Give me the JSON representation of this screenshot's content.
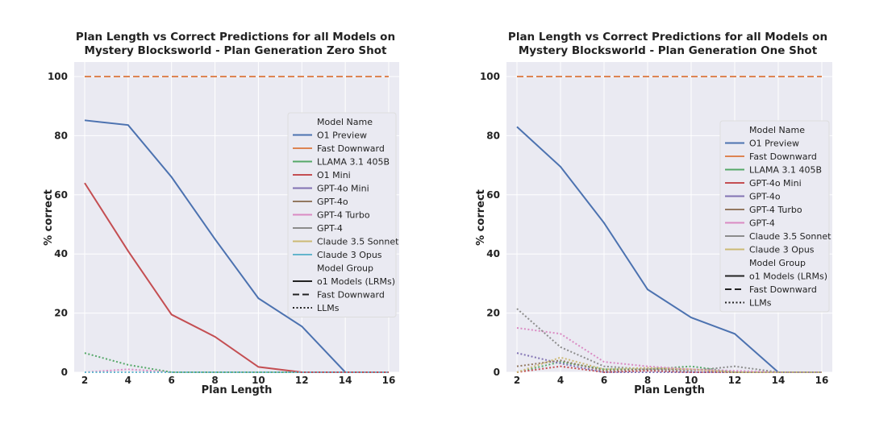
{
  "chart_data": [
    {
      "type": "line",
      "title": [
        "Plan Length vs Correct Predictions for all Models on",
        "Mystery Blocksworld - Plan Generation Zero Shot"
      ],
      "xlabel": "Plan Length",
      "ylabel": "% correct",
      "x": [
        2,
        4,
        6,
        8,
        10,
        12,
        14,
        16
      ],
      "xticks": [
        2,
        4,
        6,
        8,
        10,
        12,
        14,
        16
      ],
      "yticks": [
        0,
        20,
        40,
        60,
        80,
        100
      ],
      "ylim": [
        0,
        100
      ],
      "grid": true,
      "legend_placement": "right",
      "legend_title": "Model Name",
      "group_title": "Model Group",
      "groups": [
        {
          "name": "o1 Models (LRMs)",
          "style": "solid"
        },
        {
          "name": "Fast Downward",
          "style": "dashed"
        },
        {
          "name": "LLMs",
          "style": "dotted"
        }
      ],
      "series": [
        {
          "name": "O1 Preview",
          "color": "#4c72b0",
          "style": "solid",
          "values": [
            85.2,
            83.6,
            66,
            45,
            25,
            15.5,
            0,
            0
          ]
        },
        {
          "name": "Fast Downward",
          "color": "#dd8452",
          "style": "dashed",
          "values": [
            100,
            100,
            100,
            100,
            100,
            100,
            100,
            100
          ]
        },
        {
          "name": "LLAMA 3.1 405B",
          "color": "#55a868",
          "style": "dotted",
          "values": [
            6.5,
            2.5,
            0,
            0,
            0,
            0,
            0,
            0
          ]
        },
        {
          "name": "O1 Mini",
          "color": "#c44e52",
          "style": "solid",
          "values": [
            64,
            41,
            19.5,
            12,
            1.8,
            0,
            0,
            0
          ]
        },
        {
          "name": "GPT-4o Mini",
          "color": "#8172b3",
          "style": "dotted",
          "values": [
            0,
            0,
            0,
            0,
            0,
            0,
            0,
            0
          ]
        },
        {
          "name": "GPT-4o",
          "color": "#937860",
          "style": "dotted",
          "values": [
            0,
            0,
            0,
            0,
            0,
            0,
            0,
            0
          ]
        },
        {
          "name": "GPT-4 Turbo",
          "color": "#da8bc3",
          "style": "dotted",
          "values": [
            0,
            1,
            0,
            0,
            0,
            0,
            0,
            0
          ]
        },
        {
          "name": "GPT-4",
          "color": "#8c8c8c",
          "style": "dotted",
          "values": [
            0,
            0,
            0,
            0,
            0,
            0,
            0,
            0
          ]
        },
        {
          "name": "Claude 3.5 Sonnet",
          "color": "#ccb974",
          "style": "dotted",
          "values": [
            0,
            0,
            0,
            0,
            0,
            0,
            0,
            0
          ]
        },
        {
          "name": "Claude 3 Opus",
          "color": "#64b5cd",
          "style": "dotted",
          "values": [
            0,
            0,
            0,
            0,
            0,
            0,
            0,
            0
          ]
        }
      ]
    },
    {
      "type": "line",
      "title": [
        "Plan Length vs Correct Predictions for all Models on",
        "Mystery Blocksworld - Plan Generation One Shot"
      ],
      "xlabel": "Plan Length",
      "ylabel": "% correct",
      "x": [
        2,
        4,
        6,
        8,
        10,
        12,
        14,
        16
      ],
      "xticks": [
        2,
        4,
        6,
        8,
        10,
        12,
        14,
        16
      ],
      "yticks": [
        0,
        20,
        40,
        60,
        80,
        100
      ],
      "ylim": [
        0,
        100
      ],
      "grid": true,
      "legend_placement": "right",
      "legend_title": "Model Name",
      "group_title": "Model Group",
      "groups": [
        {
          "name": "o1 Models (LRMs)",
          "style": "solid"
        },
        {
          "name": "Fast Downward",
          "style": "dashed"
        },
        {
          "name": "LLMs",
          "style": "dotted"
        }
      ],
      "series": [
        {
          "name": "O1 Preview",
          "color": "#4c72b0",
          "style": "solid",
          "values": [
            83,
            69.5,
            50.5,
            28,
            18.5,
            13,
            0,
            0
          ]
        },
        {
          "name": "Fast Downward",
          "color": "#dd8452",
          "style": "dashed",
          "values": [
            100,
            100,
            100,
            100,
            100,
            100,
            100,
            100
          ]
        },
        {
          "name": "LLAMA 3.1 405B",
          "color": "#55a868",
          "style": "dotted",
          "values": [
            0,
            3.5,
            1,
            1,
            2,
            0,
            0,
            0
          ]
        },
        {
          "name": "GPT-4o Mini",
          "color": "#c44e52",
          "style": "dotted",
          "values": [
            0,
            2,
            0,
            0.5,
            0,
            0,
            0,
            0
          ]
        },
        {
          "name": "GPT-4o",
          "color": "#8172b3",
          "style": "dotted",
          "values": [
            6.5,
            3,
            0,
            0,
            0,
            0,
            0,
            0
          ]
        },
        {
          "name": "GPT-4 Turbo",
          "color": "#937860",
          "style": "dotted",
          "values": [
            2,
            4,
            0.5,
            1,
            1,
            0,
            0,
            0
          ]
        },
        {
          "name": "GPT-4",
          "color": "#da8bc3",
          "style": "dotted",
          "values": [
            15,
            13,
            3.5,
            2,
            1,
            0.5,
            0,
            0
          ]
        },
        {
          "name": "Claude 3.5 Sonnet",
          "color": "#8c8c8c",
          "style": "dotted",
          "values": [
            21.5,
            8.5,
            2,
            1,
            0.5,
            2,
            0,
            0
          ]
        },
        {
          "name": "Claude 3 Opus",
          "color": "#ccb974",
          "style": "dotted",
          "values": [
            0,
            5,
            1,
            1.5,
            1,
            0,
            0,
            0
          ]
        }
      ]
    }
  ]
}
